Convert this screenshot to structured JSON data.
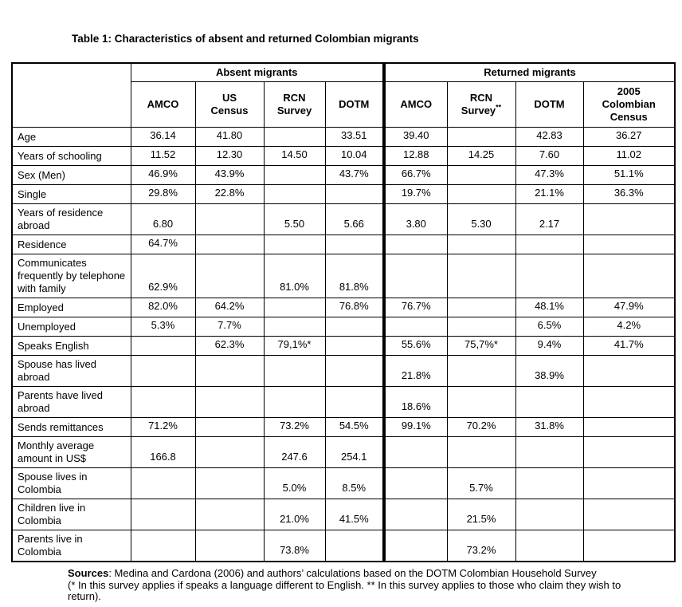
{
  "title": "Table 1: Characteristics of absent and returned Colombian migrants",
  "table": {
    "group_headers": [
      "Absent migrants",
      "Returned migrants"
    ],
    "columns": [
      {
        "lines": [
          "AMCO"
        ],
        "sup": ""
      },
      {
        "lines": [
          "US",
          "Census"
        ],
        "sup": ""
      },
      {
        "lines": [
          "RCN",
          "Survey"
        ],
        "sup": ""
      },
      {
        "lines": [
          "DOTM"
        ],
        "sup": ""
      },
      {
        "lines": [
          "AMCO"
        ],
        "sup": ""
      },
      {
        "lines": [
          "RCN",
          "Survey"
        ],
        "sup": "**"
      },
      {
        "lines": [
          "DOTM"
        ],
        "sup": ""
      },
      {
        "lines": [
          "2005",
          "Colombian",
          "Census"
        ],
        "sup": ""
      }
    ],
    "rows": [
      {
        "label": "Age",
        "values": [
          "36.14",
          "41.80",
          "",
          "33.51",
          "39.40",
          "",
          "42.83",
          "36.27"
        ]
      },
      {
        "label": "Years of schooling",
        "values": [
          "11.52",
          "12.30",
          "14.50",
          "10.04",
          "12.88",
          "14.25",
          "7.60",
          "11.02"
        ]
      },
      {
        "label": "Sex (Men)",
        "values": [
          "46.9%",
          "43.9%",
          "",
          "43.7%",
          "66.7%",
          "",
          "47.3%",
          "51.1%"
        ]
      },
      {
        "label": "Single",
        "values": [
          "29.8%",
          "22.8%",
          "",
          "",
          "19.7%",
          "",
          "21.1%",
          "36.3%"
        ]
      },
      {
        "label": "Years of residence abroad",
        "values": [
          "6.80",
          "",
          "5.50",
          "5.66",
          "3.80",
          "5.30",
          "2.17",
          ""
        ]
      },
      {
        "label": "Residence",
        "values": [
          "64.7%",
          "",
          "",
          "",
          "",
          "",
          "",
          ""
        ]
      },
      {
        "label": "Communicates frequently by telephone with family",
        "values": [
          "62.9%",
          "",
          "81.0%",
          "81.8%",
          "",
          "",
          "",
          ""
        ]
      },
      {
        "label": "Employed",
        "values": [
          "82.0%",
          "64.2%",
          "",
          "76.8%",
          "76.7%",
          "",
          "48.1%",
          "47.9%"
        ]
      },
      {
        "label": "Unemployed",
        "values": [
          "5.3%",
          "7.7%",
          "",
          "",
          "",
          "",
          "6.5%",
          "4.2%"
        ]
      },
      {
        "label": "Speaks English",
        "values": [
          "",
          "62.3%",
          "79,1%*",
          "",
          "55.6%",
          "75,7%*",
          "9.4%",
          "41.7%"
        ]
      },
      {
        "label": "Spouse has lived abroad",
        "values": [
          "",
          "",
          "",
          "",
          "21.8%",
          "",
          "38.9%",
          ""
        ]
      },
      {
        "label": "Parents have lived abroad",
        "values": [
          "",
          "",
          "",
          "",
          "18.6%",
          "",
          "",
          ""
        ]
      },
      {
        "label": "Sends remittances",
        "values": [
          "71.2%",
          "",
          "73.2%",
          "54.5%",
          "99.1%",
          "70.2%",
          "31.8%",
          ""
        ]
      },
      {
        "label": "Monthly average amount in US$",
        "values": [
          "166.8",
          "",
          "247.6",
          "254.1",
          "",
          "",
          "",
          ""
        ]
      },
      {
        "label": "Spouse lives in Colombia",
        "values": [
          "",
          "",
          "5.0%",
          "8.5%",
          "",
          "5.7%",
          "",
          ""
        ]
      },
      {
        "label": "Children live in Colombia",
        "values": [
          "",
          "",
          "21.0%",
          "41.5%",
          "",
          "21.5%",
          "",
          ""
        ]
      },
      {
        "label": "Parents live in Colombia",
        "values": [
          "",
          "",
          "73.8%",
          "",
          "",
          "73.2%",
          "",
          ""
        ]
      }
    ]
  },
  "footer": {
    "sources_label": "Sources",
    "sources_rest": ": Medina and Cardona (2006) and authors’ calculations based on the DOTM Colombian Household Survey",
    "note": "(* In this survey applies if speaks a language different to English. ** In this survey applies to those who claim they wish to return)."
  },
  "colors": {
    "text": "#000000",
    "border": "#000000",
    "background": "#ffffff"
  }
}
